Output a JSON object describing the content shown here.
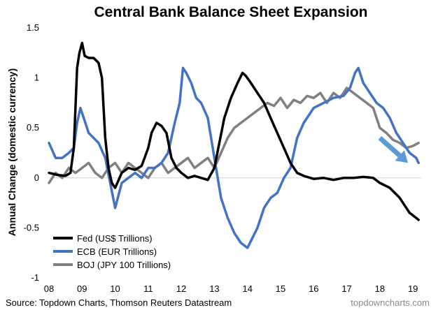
{
  "chart_data": {
    "type": "line",
    "title": "Central Bank Balance Sheet Expansion",
    "ylabel": "Annual Change (domestic currency)",
    "xlabel": "",
    "xlim": [
      2008.0,
      2019.25
    ],
    "ylim": [
      -1,
      1.5
    ],
    "yticks": [
      {
        "value": 1.5,
        "label": "1.5"
      },
      {
        "value": 1,
        "label": "1"
      },
      {
        "value": 0.5,
        "label": "0.5"
      },
      {
        "value": 0,
        "label": "0"
      },
      {
        "value": -0.5,
        "label": "-0.5"
      },
      {
        "value": -1,
        "label": "-1"
      }
    ],
    "xticks": [
      {
        "value": 2008,
        "label": "08"
      },
      {
        "value": 2009,
        "label": "09"
      },
      {
        "value": 2010,
        "label": "10"
      },
      {
        "value": 2011,
        "label": "11"
      },
      {
        "value": 2012,
        "label": "12"
      },
      {
        "value": 2013,
        "label": "13"
      },
      {
        "value": 2014,
        "label": "14"
      },
      {
        "value": 2015,
        "label": "15"
      },
      {
        "value": 2016,
        "label": "16"
      },
      {
        "value": 2017,
        "label": "17"
      },
      {
        "value": 2018,
        "label": "18"
      },
      {
        "value": 2019,
        "label": "19"
      }
    ],
    "grid": false,
    "legend_position": "bottom-left",
    "series": [
      {
        "name": "Fed (US$ Trillions)",
        "color": "#000000",
        "x": [
          2008.0,
          2008.25,
          2008.5,
          2008.65,
          2008.75,
          2008.85,
          2008.92,
          2009.0,
          2009.08,
          2009.2,
          2009.35,
          2009.5,
          2009.6,
          2009.7,
          2009.8,
          2009.9,
          2010.0,
          2010.2,
          2010.4,
          2010.6,
          2010.8,
          2011.0,
          2011.1,
          2011.25,
          2011.4,
          2011.55,
          2011.7,
          2011.85,
          2012.0,
          2012.2,
          2012.4,
          2012.6,
          2012.8,
          2013.0,
          2013.15,
          2013.3,
          2013.5,
          2013.7,
          2013.85,
          2013.95,
          2014.1,
          2014.3,
          2014.5,
          2014.7,
          2014.9,
          2015.1,
          2015.3,
          2015.5,
          2015.7,
          2016.0,
          2016.3,
          2016.6,
          2016.9,
          2017.2,
          2017.5,
          2017.8,
          2018.0,
          2018.3,
          2018.6,
          2018.9,
          2019.1,
          2019.17
        ],
        "values": [
          0.05,
          0.03,
          0.02,
          0.05,
          0.3,
          1.1,
          1.25,
          1.35,
          1.22,
          1.2,
          1.2,
          1.15,
          1.0,
          0.4,
          0.1,
          -0.05,
          -0.1,
          0.05,
          0.1,
          0.08,
          0.12,
          0.3,
          0.45,
          0.55,
          0.52,
          0.45,
          0.2,
          0.1,
          0.05,
          0.0,
          0.02,
          0.0,
          -0.02,
          0.1,
          0.35,
          0.6,
          0.8,
          0.95,
          1.05,
          1.02,
          0.95,
          0.85,
          0.75,
          0.6,
          0.45,
          0.3,
          0.15,
          0.05,
          0.02,
          -0.01,
          0.0,
          -0.02,
          0.0,
          0.0,
          0.01,
          0.0,
          -0.05,
          -0.1,
          -0.2,
          -0.35,
          -0.4,
          -0.42
        ]
      },
      {
        "name": "ECB (EUR Trillions)",
        "color": "#4472c4",
        "x": [
          2008.0,
          2008.2,
          2008.4,
          2008.6,
          2008.75,
          2008.85,
          2008.95,
          2009.05,
          2009.2,
          2009.35,
          2009.5,
          2009.7,
          2009.85,
          2010.0,
          2010.2,
          2010.4,
          2010.6,
          2010.8,
          2011.0,
          2011.2,
          2011.4,
          2011.6,
          2011.8,
          2011.95,
          2012.05,
          2012.15,
          2012.3,
          2012.45,
          2012.6,
          2012.8,
          2013.0,
          2013.2,
          2013.4,
          2013.6,
          2013.8,
          2014.0,
          2014.15,
          2014.3,
          2014.5,
          2014.7,
          2014.9,
          2015.1,
          2015.3,
          2015.5,
          2015.7,
          2016.0,
          2016.3,
          2016.6,
          2016.9,
          2017.1,
          2017.25,
          2017.35,
          2017.5,
          2017.7,
          2017.9,
          2018.1,
          2018.3,
          2018.5,
          2018.7,
          2018.9,
          2019.1,
          2019.17
        ],
        "values": [
          0.35,
          0.2,
          0.2,
          0.25,
          0.3,
          0.55,
          0.7,
          0.6,
          0.45,
          0.4,
          0.35,
          0.2,
          -0.05,
          -0.3,
          -0.05,
          0.0,
          0.05,
          0.0,
          0.1,
          0.1,
          0.15,
          0.25,
          0.55,
          0.75,
          1.1,
          1.05,
          0.95,
          0.8,
          0.75,
          0.6,
          0.2,
          -0.2,
          -0.4,
          -0.55,
          -0.65,
          -0.7,
          -0.6,
          -0.5,
          -0.3,
          -0.2,
          -0.15,
          0.0,
          0.1,
          0.4,
          0.55,
          0.7,
          0.75,
          0.8,
          0.82,
          0.9,
          1.05,
          1.1,
          0.95,
          0.85,
          0.75,
          0.7,
          0.6,
          0.45,
          0.35,
          0.25,
          0.2,
          0.15
        ]
      },
      {
        "name": "BOJ (JPY 100 Trillions)",
        "color": "#808080",
        "x": [
          2008.0,
          2008.2,
          2008.4,
          2008.6,
          2008.8,
          2009.0,
          2009.2,
          2009.4,
          2009.6,
          2009.8,
          2010.0,
          2010.2,
          2010.4,
          2010.6,
          2010.8,
          2011.0,
          2011.2,
          2011.4,
          2011.6,
          2011.8,
          2012.0,
          2012.2,
          2012.4,
          2012.6,
          2012.8,
          2013.0,
          2013.2,
          2013.4,
          2013.6,
          2013.8,
          2014.0,
          2014.2,
          2014.4,
          2014.6,
          2014.8,
          2015.0,
          2015.2,
          2015.4,
          2015.6,
          2015.8,
          2016.0,
          2016.2,
          2016.4,
          2016.6,
          2016.8,
          2017.0,
          2017.2,
          2017.4,
          2017.6,
          2017.8,
          2018.0,
          2018.2,
          2018.4,
          2018.6,
          2018.8,
          2019.0,
          2019.17
        ],
        "values": [
          -0.05,
          0.05,
          0.0,
          0.1,
          0.05,
          0.1,
          0.15,
          0.05,
          0.0,
          0.1,
          0.15,
          0.05,
          0.15,
          0.1,
          0.05,
          0.0,
          0.1,
          0.15,
          0.05,
          0.1,
          0.15,
          0.2,
          0.1,
          0.15,
          0.2,
          0.1,
          0.25,
          0.4,
          0.5,
          0.55,
          0.6,
          0.65,
          0.7,
          0.75,
          0.72,
          0.8,
          0.7,
          0.78,
          0.75,
          0.82,
          0.8,
          0.85,
          0.75,
          0.85,
          0.8,
          0.9,
          0.85,
          0.8,
          0.75,
          0.7,
          0.5,
          0.45,
          0.38,
          0.35,
          0.3,
          0.32,
          0.35
        ]
      }
    ],
    "annotations": [
      {
        "type": "arrow",
        "color": "#5b9bd5",
        "from": {
          "x": 2018.0,
          "y": 0.4
        },
        "to": {
          "x": 2018.85,
          "y": 0.15
        }
      }
    ]
  },
  "footer": {
    "source": "Source: Topdown Charts, Thomson Reuters Datastream",
    "website": "topdowncharts.com"
  }
}
